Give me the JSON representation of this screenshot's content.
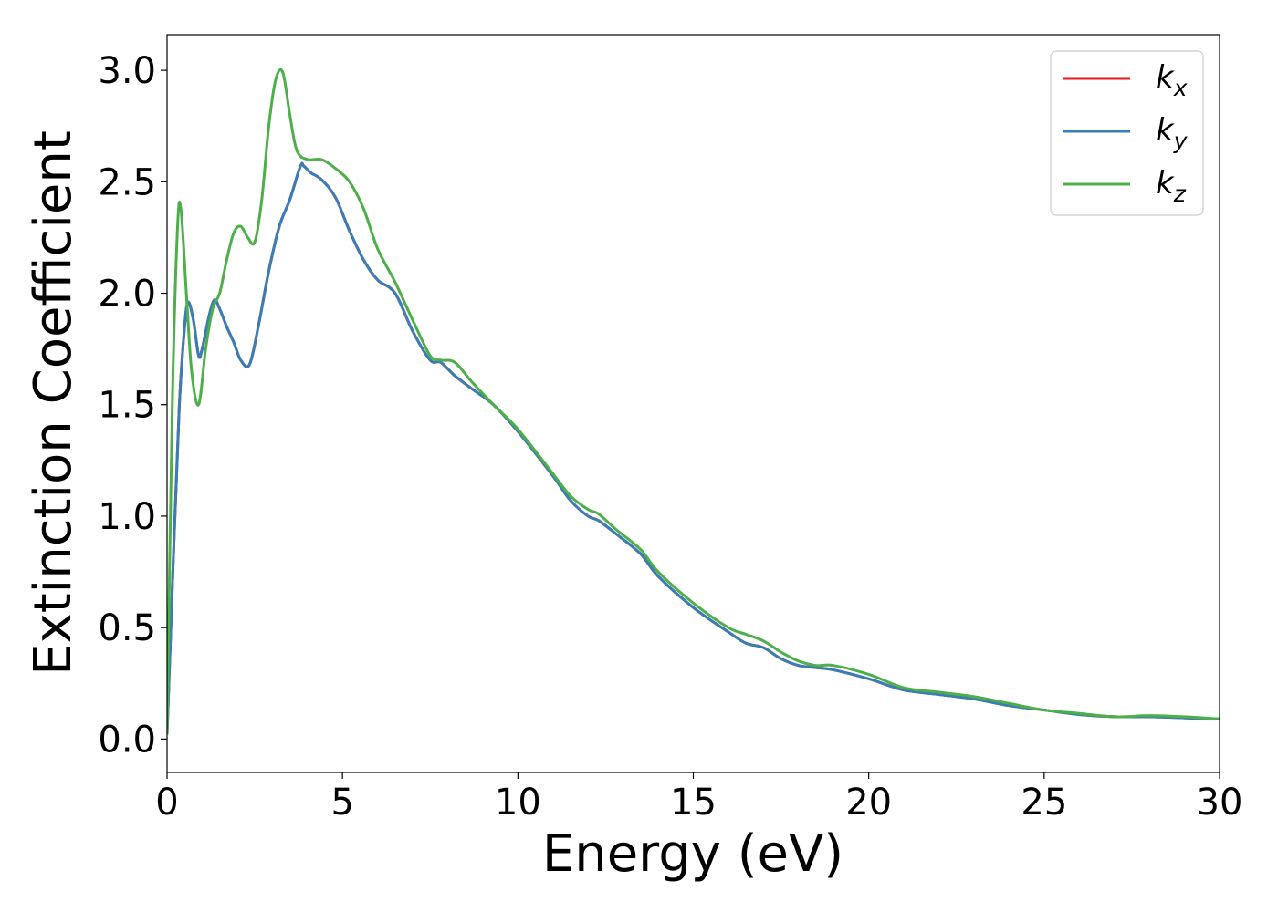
{
  "chart_data": {
    "type": "line",
    "title": "",
    "xlabel": "Energy (eV)",
    "ylabel": "Extinction Coefficient",
    "xlim": [
      0,
      30
    ],
    "ylim": [
      -0.15,
      3.16
    ],
    "xticks": [
      0,
      5,
      10,
      15,
      20,
      25,
      30
    ],
    "xtick_labels": [
      "0",
      "5",
      "10",
      "15",
      "20",
      "25",
      "30"
    ],
    "yticks": [
      0.0,
      0.5,
      1.0,
      1.5,
      2.0,
      2.5,
      3.0
    ],
    "ytick_labels": [
      "0.0",
      "0.5",
      "1.0",
      "1.5",
      "2.0",
      "2.5",
      "3.0"
    ],
    "grid": false,
    "legend_position": "top-right",
    "series": [
      {
        "name": "kx",
        "label_base": "k",
        "label_sub": "x",
        "color": "#e41a1c",
        "x": [
          0,
          0.2,
          0.35,
          0.5,
          0.6,
          0.75,
          0.9,
          1.0,
          1.2,
          1.35,
          1.5,
          1.7,
          1.9,
          2.1,
          2.35,
          2.6,
          2.9,
          3.2,
          3.5,
          3.8,
          3.9,
          4.1,
          4.4,
          4.8,
          5.2,
          5.6,
          6.0,
          6.5,
          7.0,
          7.5,
          7.8,
          8.2,
          8.7,
          9.3,
          10,
          11,
          11.5,
          12,
          12.3,
          12.8,
          13.5,
          14,
          15,
          16,
          16.5,
          17,
          17.5,
          18,
          18.5,
          19,
          20,
          21,
          22,
          23,
          24,
          25,
          26,
          27,
          28,
          29,
          30
        ],
        "y": [
          0.02,
          0.9,
          1.5,
          1.85,
          1.96,
          1.88,
          1.72,
          1.75,
          1.9,
          1.97,
          1.93,
          1.85,
          1.78,
          1.7,
          1.68,
          1.85,
          2.1,
          2.3,
          2.42,
          2.57,
          2.57,
          2.54,
          2.51,
          2.43,
          2.28,
          2.15,
          2.06,
          2.0,
          1.83,
          1.7,
          1.69,
          1.63,
          1.57,
          1.5,
          1.38,
          1.18,
          1.07,
          1.0,
          0.98,
          0.92,
          0.83,
          0.73,
          0.59,
          0.48,
          0.43,
          0.41,
          0.36,
          0.33,
          0.32,
          0.31,
          0.27,
          0.22,
          0.2,
          0.18,
          0.15,
          0.13,
          0.11,
          0.1,
          0.1,
          0.095,
          0.09
        ]
      },
      {
        "name": "ky",
        "label_base": "k",
        "label_sub": "y",
        "color": "#377eb8",
        "x": [
          0,
          0.2,
          0.35,
          0.5,
          0.6,
          0.75,
          0.9,
          1.0,
          1.2,
          1.35,
          1.5,
          1.7,
          1.9,
          2.1,
          2.35,
          2.6,
          2.9,
          3.2,
          3.5,
          3.8,
          3.9,
          4.1,
          4.4,
          4.8,
          5.2,
          5.6,
          6.0,
          6.5,
          7.0,
          7.5,
          7.8,
          8.2,
          8.7,
          9.3,
          10,
          11,
          11.5,
          12,
          12.3,
          12.8,
          13.5,
          14,
          15,
          16,
          16.5,
          17,
          17.5,
          18,
          18.5,
          19,
          20,
          21,
          22,
          23,
          24,
          25,
          26,
          27,
          28,
          29,
          30
        ],
        "y": [
          0.02,
          0.9,
          1.5,
          1.85,
          1.96,
          1.88,
          1.72,
          1.75,
          1.9,
          1.97,
          1.93,
          1.85,
          1.78,
          1.7,
          1.68,
          1.85,
          2.1,
          2.3,
          2.42,
          2.57,
          2.57,
          2.54,
          2.51,
          2.43,
          2.28,
          2.15,
          2.06,
          2.0,
          1.83,
          1.7,
          1.69,
          1.63,
          1.57,
          1.5,
          1.38,
          1.18,
          1.07,
          1.0,
          0.98,
          0.92,
          0.83,
          0.73,
          0.59,
          0.48,
          0.43,
          0.41,
          0.36,
          0.33,
          0.32,
          0.31,
          0.27,
          0.22,
          0.2,
          0.18,
          0.15,
          0.13,
          0.11,
          0.1,
          0.1,
          0.095,
          0.09
        ]
      },
      {
        "name": "kz",
        "label_base": "k",
        "label_sub": "z",
        "color": "#4daf4a",
        "x": [
          0,
          0.15,
          0.3,
          0.4,
          0.55,
          0.7,
          0.9,
          1.1,
          1.3,
          1.5,
          1.7,
          1.9,
          2.1,
          2.3,
          2.5,
          2.7,
          2.9,
          3.1,
          3.3,
          3.5,
          3.7,
          4.0,
          4.4,
          4.8,
          5.2,
          5.6,
          6.0,
          6.5,
          7.0,
          7.5,
          7.8,
          8.2,
          8.7,
          9.3,
          10,
          11,
          11.5,
          12,
          12.3,
          12.8,
          13.5,
          14,
          15,
          16,
          16.5,
          17,
          17.5,
          18,
          18.5,
          19,
          20,
          21,
          22,
          23,
          24,
          25,
          26,
          27,
          28,
          29,
          30
        ],
        "y": [
          0.02,
          1.5,
          2.3,
          2.37,
          2.0,
          1.65,
          1.5,
          1.75,
          1.93,
          2.0,
          2.15,
          2.27,
          2.3,
          2.25,
          2.23,
          2.42,
          2.75,
          2.96,
          2.99,
          2.8,
          2.64,
          2.6,
          2.6,
          2.56,
          2.5,
          2.38,
          2.2,
          2.05,
          1.88,
          1.72,
          1.7,
          1.69,
          1.6,
          1.5,
          1.39,
          1.19,
          1.09,
          1.03,
          1.01,
          0.94,
          0.85,
          0.75,
          0.61,
          0.5,
          0.47,
          0.44,
          0.39,
          0.35,
          0.33,
          0.33,
          0.29,
          0.23,
          0.21,
          0.19,
          0.16,
          0.13,
          0.115,
          0.1,
          0.105,
          0.1,
          0.09
        ]
      }
    ]
  }
}
